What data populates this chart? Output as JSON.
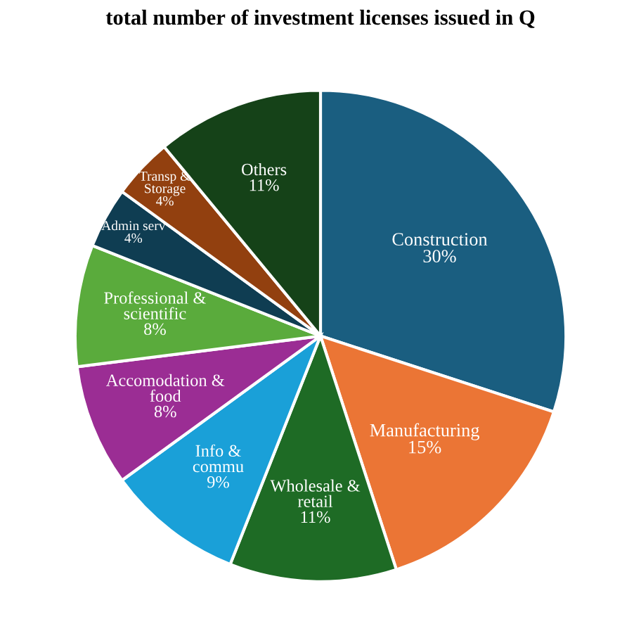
{
  "chart_data": {
    "type": "pie",
    "title": "total number of investment licenses issued in Q",
    "categories": [
      "Construction",
      "Manufacturing",
      "Wholesale & retail",
      "Info & commu",
      "Accomodation & food",
      "Professional & scientific",
      "Admin serv",
      "Transp & Storage",
      "Others"
    ],
    "values": [
      30,
      15,
      11,
      9,
      8,
      8,
      4,
      4,
      11
    ],
    "value_labels": [
      "30%",
      "15%",
      "11%",
      "9%",
      "8%",
      "8%",
      "4%",
      "4%",
      "11%"
    ],
    "colors": [
      "#1a5e80",
      "#eb7535",
      "#1e6b25",
      "#1aa0d8",
      "#9b2d94",
      "#5aab3c",
      "#0f3d52",
      "#92400f",
      "#154218"
    ],
    "legend": false
  }
}
